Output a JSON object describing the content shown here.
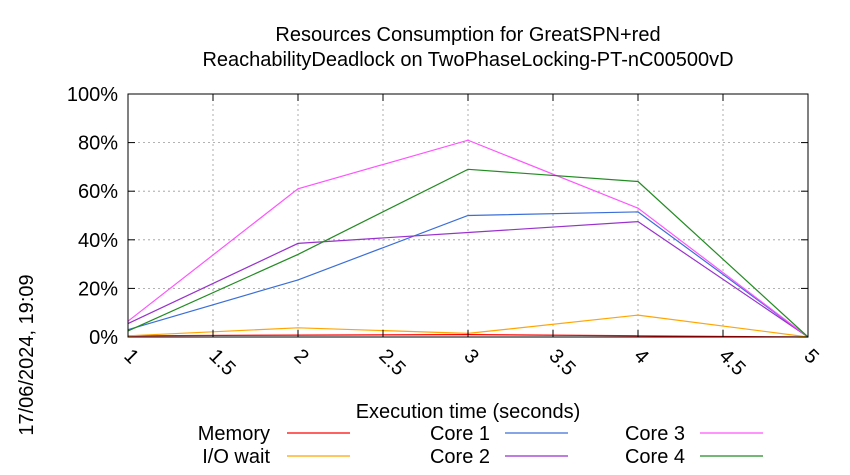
{
  "chart_data": {
    "type": "line",
    "title": "Resources Consumption for GreatSPN+red",
    "subtitle": "ReachabilityDeadlock on TwoPhaseLocking-PT-nC00500vD",
    "xlabel": "Execution time (seconds)",
    "ylabel": "",
    "timestamp": "17/06/2024, 19:09",
    "xlim": [
      1,
      5
    ],
    "ylim": [
      0,
      100
    ],
    "grid": true,
    "legend_position": "bottom",
    "x_ticks": [
      "1",
      "1.5",
      "2",
      "2.5",
      "3",
      "3.5",
      "4",
      "4.5",
      "5"
    ],
    "y_ticks": [
      "0%",
      "20%",
      "40%",
      "60%",
      "80%",
      "100%"
    ],
    "x": [
      1,
      2,
      3,
      4,
      5
    ],
    "series": [
      {
        "name": "Memory",
        "color": "#ff0000",
        "values": [
          0.5,
          0.8,
          1.0,
          0.5,
          0
        ]
      },
      {
        "name": "I/O wait",
        "color": "#ffa500",
        "values": [
          0.5,
          3.8,
          1.5,
          9.0,
          0
        ]
      },
      {
        "name": "Core 1",
        "color": "#3b6fd8",
        "values": [
          3,
          23.5,
          50,
          51.5,
          0
        ]
      },
      {
        "name": "Core 2",
        "color": "#9932cc",
        "values": [
          5.5,
          38.5,
          43,
          47.5,
          0
        ]
      },
      {
        "name": "Core 3",
        "color": "#ff55ff",
        "values": [
          6.5,
          61,
          81,
          53,
          0
        ]
      },
      {
        "name": "Core 4",
        "color": "#228b22",
        "values": [
          2.5,
          34,
          69,
          64,
          0
        ]
      }
    ]
  }
}
